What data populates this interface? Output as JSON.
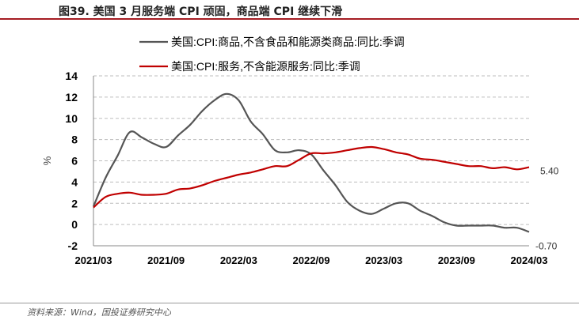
{
  "header": {
    "title": "图39. 美国 3 月服务端 CPI 顽固，商品端 CPI 继续下滑",
    "accent": "#a51c22"
  },
  "footer": {
    "source": "资料来源：Wind，国投证券研究中心"
  },
  "chart_data": {
    "type": "line",
    "title": "",
    "xlabel": "",
    "ylabel": "%",
    "ylim": [
      -2,
      14
    ],
    "yticks": [
      -2,
      0,
      2,
      4,
      6,
      8,
      10,
      12,
      14
    ],
    "x_tick_labels": [
      "2021/03",
      "2021/09",
      "2022/03",
      "2022/09",
      "2023/03",
      "2023/09",
      "2024/03"
    ],
    "x_tick_index": [
      0,
      6,
      12,
      18,
      24,
      30,
      36
    ],
    "grid": "horizontal-dashed",
    "legend_position": "top-left",
    "x": [
      "2021/03",
      "2021/04",
      "2021/05",
      "2021/06",
      "2021/07",
      "2021/08",
      "2021/09",
      "2021/10",
      "2021/11",
      "2021/12",
      "2022/01",
      "2022/02",
      "2022/03",
      "2022/04",
      "2022/05",
      "2022/06",
      "2022/07",
      "2022/08",
      "2022/09",
      "2022/10",
      "2022/11",
      "2022/12",
      "2023/01",
      "2023/02",
      "2023/03",
      "2023/04",
      "2023/05",
      "2023/06",
      "2023/07",
      "2023/08",
      "2023/09",
      "2023/10",
      "2023/11",
      "2023/12",
      "2024/01",
      "2024/02",
      "2024/03"
    ],
    "series": [
      {
        "name": "美国:CPI:商品,不含食品和能源类商品:同比:季调",
        "color": "#555555",
        "values": [
          1.7,
          4.4,
          6.5,
          8.7,
          8.2,
          7.6,
          7.3,
          8.4,
          9.4,
          10.7,
          11.7,
          12.3,
          11.7,
          9.7,
          8.5,
          7.0,
          6.8,
          7.0,
          6.6,
          5.1,
          3.7,
          2.1,
          1.3,
          1.0,
          1.5,
          2.0,
          2.0,
          1.3,
          0.8,
          0.2,
          -0.1,
          -0.1,
          -0.1,
          -0.1,
          -0.3,
          -0.3,
          -0.7
        ]
      },
      {
        "name": "美国:CPI:服务,不含能源服务:同比:季调",
        "color": "#c00000",
        "values": [
          1.6,
          2.6,
          2.9,
          3.0,
          2.8,
          2.8,
          2.9,
          3.3,
          3.4,
          3.7,
          4.1,
          4.4,
          4.7,
          4.9,
          5.2,
          5.5,
          5.5,
          6.1,
          6.7,
          6.7,
          6.8,
          7.0,
          7.2,
          7.3,
          7.1,
          6.8,
          6.6,
          6.2,
          6.1,
          5.9,
          5.7,
          5.5,
          5.5,
          5.3,
          5.4,
          5.2,
          5.4
        ]
      }
    ],
    "end_labels": [
      "-0.70",
      "5.40"
    ]
  }
}
